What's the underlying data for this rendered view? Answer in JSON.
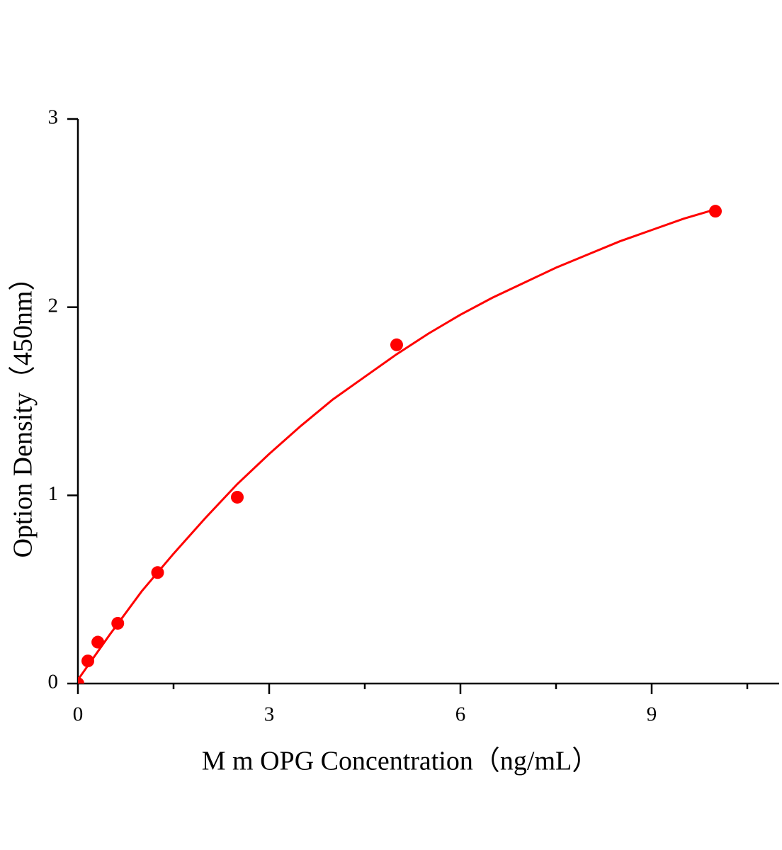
{
  "chart_data": {
    "type": "scatter",
    "x_label": "M  m OPG Concentration（ng/mL）",
    "y_label": "Option Density（450nm）",
    "xlim": [
      0,
      11
    ],
    "xticks": [
      0,
      3,
      6,
      9
    ],
    "xminor_ticks": [
      1.5,
      4.5,
      7.5,
      10.5
    ],
    "ylim": [
      0,
      3
    ],
    "yticks": [
      0,
      1,
      2,
      3
    ],
    "grid": false,
    "series": [
      {
        "type": "scatter",
        "color": "#ff0000",
        "x": [
          0,
          0.156,
          0.3125,
          0.625,
          1.25,
          2.5,
          5,
          10
        ],
        "values": [
          0,
          0.12,
          0.22,
          0.32,
          0.59,
          0.99,
          1.8,
          2.51
        ]
      },
      {
        "type": "line",
        "color": "#ff0000",
        "x": [
          0,
          0.5,
          1,
          1.5,
          2,
          2.5,
          3,
          3.5,
          4,
          4.5,
          5,
          5.5,
          6,
          6.5,
          7,
          7.5,
          8,
          8.5,
          9,
          9.5,
          10
        ],
        "values": [
          0.02,
          0.26,
          0.49,
          0.69,
          0.88,
          1.06,
          1.22,
          1.37,
          1.51,
          1.63,
          1.75,
          1.86,
          1.96,
          2.05,
          2.13,
          2.21,
          2.28,
          2.35,
          2.41,
          2.47,
          2.52
        ]
      }
    ]
  }
}
